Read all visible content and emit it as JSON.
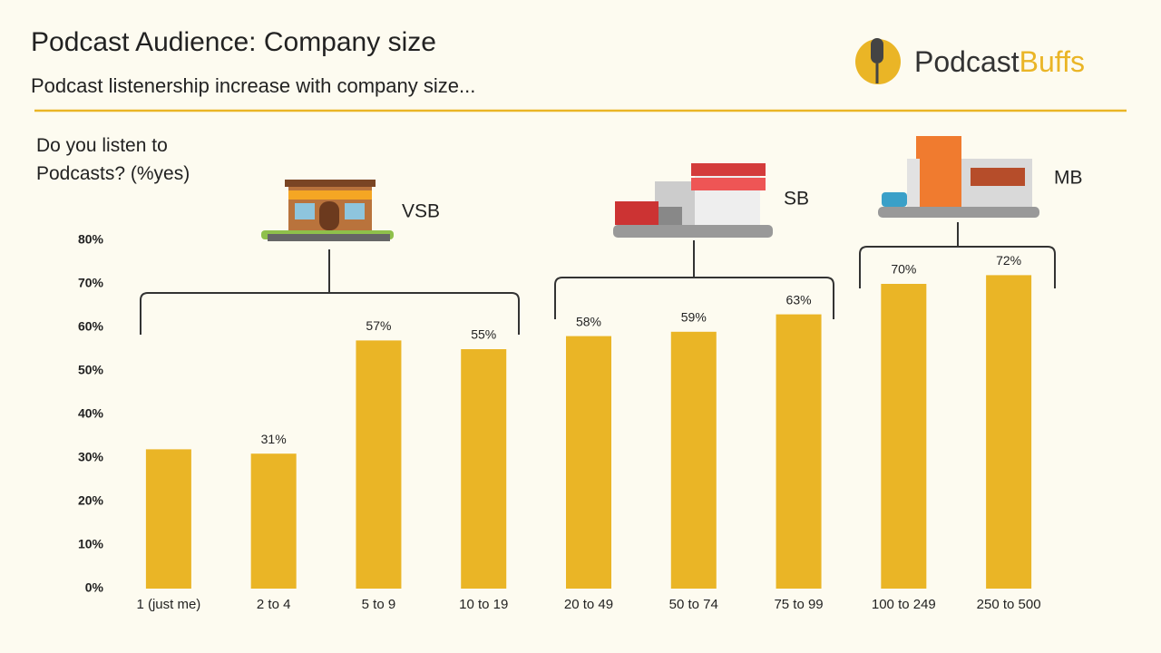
{
  "chart_data": {
    "type": "bar",
    "title": "Podcast Audience: Company size",
    "subtitle": "Podcast listenership increase with company size...",
    "brand": [
      "Podcast",
      "Buffs"
    ],
    "ylabel": "Do you listen to Podcasts? (%yes)",
    "annotations": [
      "VSB",
      "SB",
      "MB"
    ],
    "categories": [
      "1 (just me)",
      "2 to 4",
      "5 to 9",
      "10 to 19",
      "20 to 49",
      "50 to 74",
      "75 to 99",
      "100 to 249",
      "250 to 500"
    ],
    "values": [
      32,
      31,
      57,
      55,
      58,
      59,
      63,
      70,
      72
    ],
    "value_labels": [
      null,
      "31%",
      "57%",
      "55%",
      "58%",
      "59%",
      "63%",
      "70%",
      "72%"
    ],
    "color": "#eab526",
    "ylim": [
      0,
      80
    ],
    "yticks": [
      {
        "value": 0,
        "label": "0%"
      },
      {
        "value": 10,
        "label": "10%"
      },
      {
        "value": 20,
        "label": "20%"
      },
      {
        "value": 30,
        "label": "30%"
      },
      {
        "value": 40,
        "label": "40%"
      },
      {
        "value": 50,
        "label": "50%"
      },
      {
        "value": 60,
        "label": "60%"
      },
      {
        "value": 70,
        "label": "70%"
      },
      {
        "value": 80,
        "label": "80%"
      }
    ],
    "grid": false
  }
}
